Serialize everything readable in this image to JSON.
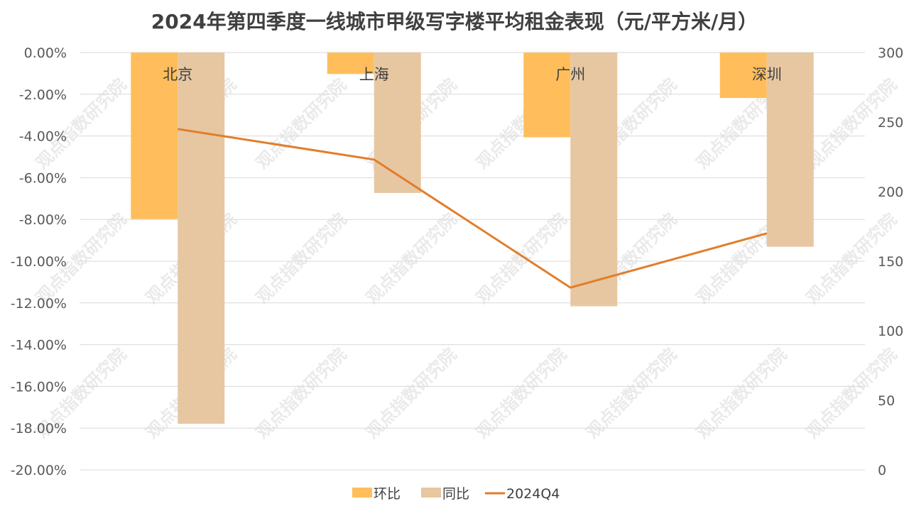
{
  "chart_data": {
    "type": "bar",
    "title": "2024年第四季度一线城市甲级写字楼平均租金表现（元/平方米/月）",
    "categories": [
      "北京",
      "上海",
      "广州",
      "深圳"
    ],
    "series": [
      {
        "name": "环比",
        "type": "bar",
        "axis": "left",
        "color": "#FFBE5B",
        "values": [
          -7.98,
          -1.03,
          -4.06,
          -2.18
        ]
      },
      {
        "name": "同比",
        "type": "bar",
        "axis": "left",
        "color": "#E6C7A1",
        "values": [
          -17.79,
          -6.73,
          -12.16,
          -9.31
        ]
      },
      {
        "name": "2024Q4",
        "type": "line",
        "axis": "right",
        "color": "#E27D2B",
        "values": [
          245,
          223,
          131,
          170
        ]
      }
    ],
    "y_left": {
      "min": -20,
      "max": 0,
      "step": 2,
      "tick_labels": [
        "0.00%",
        "-2.00%",
        "-4.00%",
        "-6.00%",
        "-8.00%",
        "-10.00%",
        "-12.00%",
        "-14.00%",
        "-16.00%",
        "-18.00%",
        "-20.00%"
      ]
    },
    "y_right": {
      "min": 0,
      "max": 300,
      "step": 50,
      "tick_labels": [
        "300",
        "250",
        "200",
        "150",
        "100",
        "50",
        "0"
      ]
    },
    "grid": true,
    "legend_position": "bottom",
    "watermark": "观点指数研究院"
  }
}
